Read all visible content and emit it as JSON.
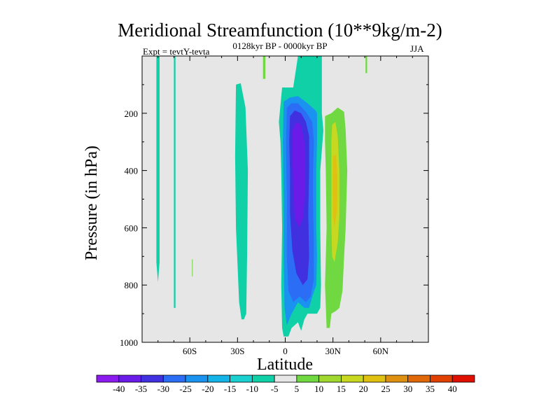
{
  "chart_data": {
    "type": "heatmap",
    "title": "Meridional Streamfunction (10**9kg/m-2)",
    "subtitle": "0128kyr BP - 0000kyr BP",
    "experiment_label": "Expt = tevtY-tevta",
    "season": "JJA",
    "xlabel": "Latitude",
    "ylabel": "Pressure (in hPa)",
    "xlim": [
      -90,
      90
    ],
    "ylim": [
      1000,
      0
    ],
    "x_ticks": [
      {
        "value": -60,
        "label": "60S"
      },
      {
        "value": -30,
        "label": "30S"
      },
      {
        "value": 0,
        "label": "0"
      },
      {
        "value": 30,
        "label": "30N"
      },
      {
        "value": 60,
        "label": "60N"
      }
    ],
    "y_ticks": [
      {
        "value": 200,
        "label": "200"
      },
      {
        "value": 400,
        "label": "400"
      },
      {
        "value": 600,
        "label": "600"
      },
      {
        "value": 800,
        "label": "800"
      },
      {
        "value": 1000,
        "label": "1000"
      }
    ],
    "colorbar": {
      "labels": [
        "-40",
        "-35",
        "-30",
        "-25",
        "-20",
        "-15",
        "-10",
        "-5",
        "5",
        "10",
        "15",
        "20",
        "25",
        "30",
        "35",
        "40"
      ],
      "colors": [
        "#8c1bef",
        "#6a1be8",
        "#4030e0",
        "#2b6ef5",
        "#1a93f0",
        "#14b3e8",
        "#1ad0d0",
        "#10d0a8",
        "#e6e6e6",
        "#70d840",
        "#a0d830",
        "#c8d820",
        "#e0c010",
        "#e09010",
        "#e06808",
        "#e04000",
        "#e01000"
      ]
    },
    "regions": [
      {
        "name": "far-south-band",
        "value": -10,
        "points": [
          [
            -81,
            0
          ],
          [
            -79,
            0
          ],
          [
            -79,
            360
          ],
          [
            -79,
            720
          ],
          [
            -80,
            790
          ],
          [
            -81,
            720
          ],
          [
            -81,
            360
          ]
        ]
      },
      {
        "name": "south-thin-band",
        "value": -10,
        "points": [
          [
            -70,
            0
          ],
          [
            -69,
            0
          ],
          [
            -69,
            400
          ],
          [
            -69,
            880
          ],
          [
            -70,
            880
          ],
          [
            -70,
            400
          ]
        ]
      },
      {
        "name": "south-blip",
        "value": 5,
        "points": [
          [
            -58.6,
            710
          ],
          [
            -58.2,
            710
          ],
          [
            -58.2,
            770
          ],
          [
            -58.6,
            770
          ]
        ]
      },
      {
        "name": "subtropic-band",
        "value": -10,
        "points": [
          [
            -31,
            100
          ],
          [
            -28,
            95
          ],
          [
            -25,
            180
          ],
          [
            -23.5,
            400
          ],
          [
            -24,
            700
          ],
          [
            -24.5,
            900
          ],
          [
            -26,
            920
          ],
          [
            -27.5,
            920
          ],
          [
            -29,
            860
          ],
          [
            -31,
            600
          ],
          [
            -31.5,
            350
          ]
        ]
      },
      {
        "name": "top-green-blip",
        "value": 5,
        "points": [
          [
            -14,
            0
          ],
          [
            -12.5,
            0
          ],
          [
            -12.5,
            80
          ],
          [
            -14,
            80
          ]
        ]
      },
      {
        "name": "top-green-blip-2",
        "value": 5,
        "points": [
          [
            50.5,
            0
          ],
          [
            51.5,
            0
          ],
          [
            51.5,
            60
          ],
          [
            50.5,
            60
          ]
        ]
      },
      {
        "name": "green-column",
        "value": 5,
        "points": [
          [
            25,
            210
          ],
          [
            29,
            200
          ],
          [
            33,
            180
          ],
          [
            37,
            195
          ],
          [
            38,
            260
          ],
          [
            39,
            400
          ],
          [
            38,
            600
          ],
          [
            37,
            700
          ],
          [
            36,
            820
          ],
          [
            34,
            880
          ],
          [
            32,
            890
          ],
          [
            29,
            900
          ],
          [
            28,
            950
          ],
          [
            26,
            950
          ],
          [
            25,
            800
          ],
          [
            26,
            600
          ],
          [
            25.5,
            400
          ],
          [
            25,
            300
          ]
        ]
      },
      {
        "name": "green-inner",
        "value": 15,
        "points": [
          [
            29.5,
            240
          ],
          [
            31.5,
            230
          ],
          [
            33,
            280
          ],
          [
            34,
            400
          ],
          [
            34,
            560
          ],
          [
            33,
            650
          ],
          [
            31,
            720
          ],
          [
            29.5,
            700
          ],
          [
            29,
            600
          ],
          [
            29,
            300
          ]
        ]
      },
      {
        "name": "green-core",
        "value": 20,
        "points": [
          [
            30,
            350
          ],
          [
            32,
            345
          ],
          [
            32.8,
            430
          ],
          [
            32.5,
            540
          ],
          [
            31,
            600
          ],
          [
            30,
            560
          ],
          [
            29.8,
            450
          ]
        ]
      },
      {
        "name": "cyan-column",
        "value": -10,
        "points": [
          [
            -4,
            230
          ],
          [
            -2,
            110
          ],
          [
            5,
            110
          ],
          [
            8,
            0
          ],
          [
            23,
            0
          ],
          [
            23,
            200
          ],
          [
            24,
            260
          ],
          [
            22,
            400
          ],
          [
            22,
            600
          ],
          [
            22.5,
            800
          ],
          [
            22,
            880
          ],
          [
            20,
            900
          ],
          [
            14,
            900
          ],
          [
            12,
            920
          ],
          [
            10,
            960
          ],
          [
            8,
            930
          ],
          [
            4,
            950
          ],
          [
            2,
            980
          ],
          [
            -1,
            980
          ],
          [
            -2,
            950
          ],
          [
            -2.5,
            800
          ],
          [
            -2,
            600
          ],
          [
            -2.5,
            400
          ],
          [
            -3,
            300
          ]
        ]
      },
      {
        "name": "blue-shell",
        "value": -25,
        "points": [
          [
            -1,
            160
          ],
          [
            3,
            145
          ],
          [
            8,
            140
          ],
          [
            14,
            165
          ],
          [
            19,
            190
          ],
          [
            20,
            200
          ],
          [
            20,
            300
          ],
          [
            19.5,
            400
          ],
          [
            19.5,
            600
          ],
          [
            20,
            700
          ],
          [
            19.5,
            800
          ],
          [
            17,
            840
          ],
          [
            15,
            880
          ],
          [
            12,
            880
          ],
          [
            8,
            860
          ],
          [
            4,
            900
          ],
          [
            1,
            940
          ],
          [
            -0.5,
            880
          ],
          [
            -1,
            700
          ],
          [
            -1,
            500
          ],
          [
            -1.5,
            300
          ]
        ]
      },
      {
        "name": "blue-inner",
        "value": -30,
        "points": [
          [
            1,
            180
          ],
          [
            4,
            165
          ],
          [
            8,
            165
          ],
          [
            13,
            195
          ],
          [
            17,
            230
          ],
          [
            18,
            300
          ],
          [
            17.5,
            400
          ],
          [
            17.5,
            500
          ],
          [
            18,
            650
          ],
          [
            18,
            780
          ],
          [
            16,
            840
          ],
          [
            13,
            860
          ],
          [
            9,
            840
          ],
          [
            5,
            860
          ],
          [
            2,
            820
          ],
          [
            1,
            700
          ],
          [
            1,
            500
          ],
          [
            0.5,
            300
          ]
        ]
      },
      {
        "name": "purple-core",
        "value": -35,
        "points": [
          [
            3,
            210
          ],
          [
            6,
            190
          ],
          [
            10,
            200
          ],
          [
            13,
            230
          ],
          [
            15,
            280
          ],
          [
            15,
            400
          ],
          [
            14.5,
            550
          ],
          [
            15,
            700
          ],
          [
            14,
            780
          ],
          [
            11,
            800
          ],
          [
            7,
            760
          ],
          [
            4.5,
            680
          ],
          [
            3,
            550
          ],
          [
            3,
            400
          ],
          [
            2.5,
            300
          ]
        ]
      },
      {
        "name": "purple-deep",
        "value": -40,
        "points": [
          [
            4.5,
            260
          ],
          [
            7,
            230
          ],
          [
            10,
            240
          ],
          [
            12,
            300
          ],
          [
            12.5,
            450
          ],
          [
            11.5,
            560
          ],
          [
            9,
            600
          ],
          [
            6,
            570
          ],
          [
            5,
            450
          ],
          [
            4.5,
            350
          ]
        ]
      }
    ]
  }
}
